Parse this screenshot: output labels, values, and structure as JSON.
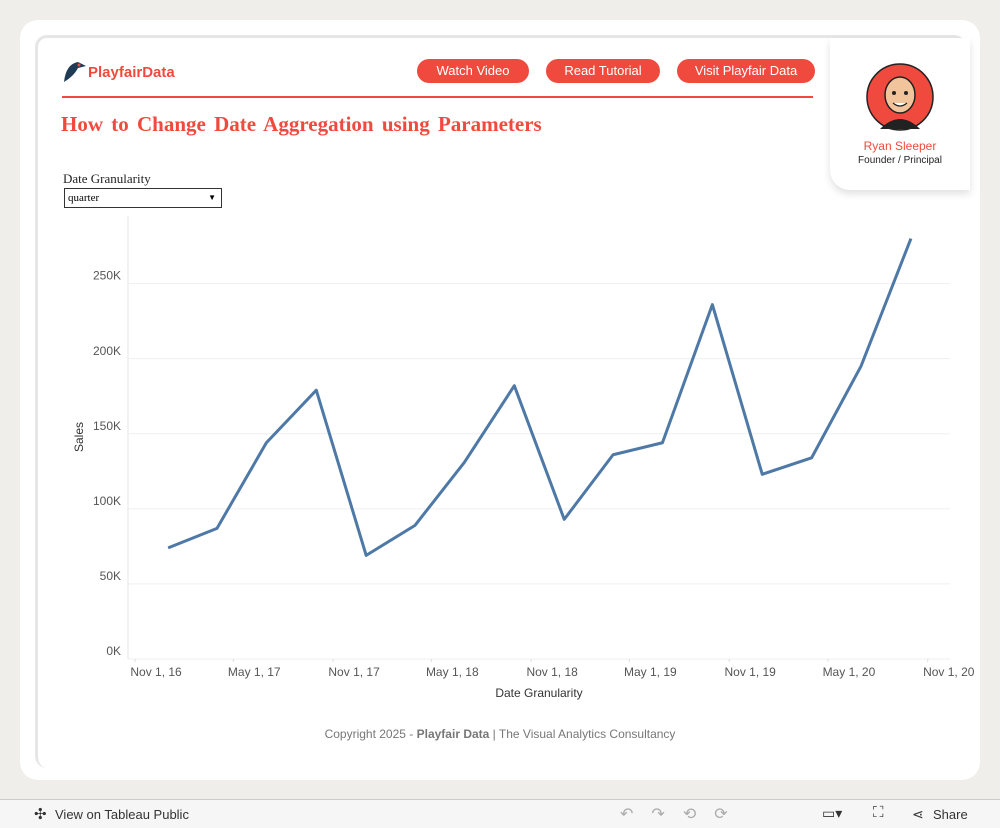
{
  "header": {
    "logo": "PlayfairData",
    "buttons": [
      "Watch Video",
      "Read Tutorial",
      "Visit Playfair Data"
    ],
    "title": "How to Change Date Aggregation using Parameters"
  },
  "profile": {
    "name": "Ryan Sleeper",
    "role": "Founder / Principal"
  },
  "parameter": {
    "label": "Date Granularity",
    "value": "quarter"
  },
  "chart_data": {
    "type": "line",
    "x_label": "Date Granularity",
    "y_label": "Sales",
    "color": "#4e79a7",
    "x": [
      "2017-01-01",
      "2017-04-01",
      "2017-07-01",
      "2017-10-01",
      "2018-01-01",
      "2018-04-01",
      "2018-07-01",
      "2018-10-01",
      "2019-01-01",
      "2019-04-01",
      "2019-07-01",
      "2019-10-01",
      "2020-01-01",
      "2020-04-01",
      "2020-07-01",
      "2020-10-01"
    ],
    "values": [
      74000,
      87000,
      144000,
      179000,
      69000,
      89000,
      131000,
      182000,
      93000,
      136000,
      144000,
      236000,
      123000,
      134000,
      195000,
      280000
    ],
    "xlim": [
      "2016-10-19",
      "2020-12-12"
    ],
    "xticks": [
      {
        "value": "2016-11-01",
        "label": "Nov 1, 16"
      },
      {
        "value": "2017-05-01",
        "label": "May 1, 17"
      },
      {
        "value": "2017-11-01",
        "label": "Nov 1, 17"
      },
      {
        "value": "2018-05-01",
        "label": "May 1, 18"
      },
      {
        "value": "2018-11-01",
        "label": "Nov 1, 18"
      },
      {
        "value": "2019-05-01",
        "label": "May 1, 19"
      },
      {
        "value": "2019-11-01",
        "label": "Nov 1, 19"
      },
      {
        "value": "2020-05-01",
        "label": "May 1, 20"
      },
      {
        "value": "2020-11-01",
        "label": "Nov 1, 20"
      }
    ],
    "ylim": [
      0,
      295000
    ],
    "yticks": [
      {
        "value": 0,
        "label": "0K"
      },
      {
        "value": 50000,
        "label": "50K"
      },
      {
        "value": 100000,
        "label": "100K"
      },
      {
        "value": 150000,
        "label": "150K"
      },
      {
        "value": 200000,
        "label": "200K"
      },
      {
        "value": 250000,
        "label": "250K"
      }
    ],
    "grid": true
  },
  "footer": {
    "prefix": "Copyright 2025 - ",
    "brand": "Playfair Data",
    "suffix": " | The Visual Analytics Consultancy"
  },
  "toolbar": {
    "left": "View on Tableau Public",
    "right": "Share"
  }
}
